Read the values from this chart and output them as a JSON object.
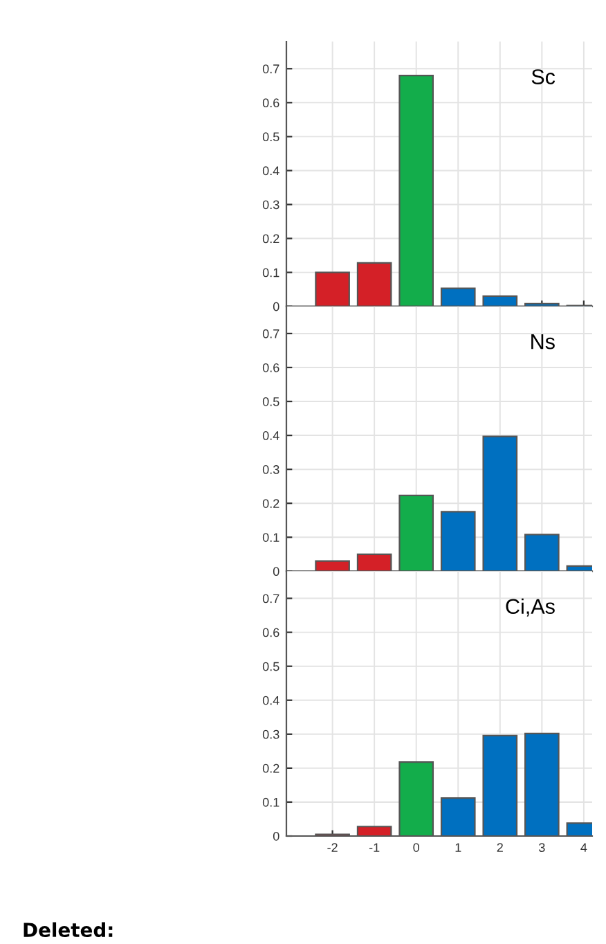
{
  "chart_data": [
    {
      "type": "bar",
      "title": "Sc",
      "x": [
        -2,
        -1,
        0,
        1,
        2,
        3,
        4
      ],
      "values": [
        0.1,
        0.128,
        0.68,
        0.053,
        0.03,
        0.008,
        0.002
      ],
      "colors": [
        "#d42027",
        "#d42027",
        "#13ad4b",
        "#0070c0",
        "#0070c0",
        "#0070c0",
        "#0070c0"
      ],
      "xlim": [
        -3.1,
        4.2
      ],
      "ylim": [
        0,
        0.78
      ],
      "xticks": [
        -2,
        -1,
        0,
        1,
        2,
        3,
        4
      ],
      "yticks": [
        0,
        0.1,
        0.2,
        0.3,
        0.4,
        0.5,
        0.6,
        0.7
      ],
      "grid": true,
      "tick_labels": "y"
    },
    {
      "type": "bar",
      "title": "Ns",
      "x": [
        -2,
        -1,
        0,
        1,
        2,
        3,
        4
      ],
      "values": [
        0.03,
        0.05,
        0.223,
        0.175,
        0.397,
        0.108,
        0.015
      ],
      "colors": [
        "#d42027",
        "#d42027",
        "#13ad4b",
        "#0070c0",
        "#0070c0",
        "#0070c0",
        "#0070c0"
      ],
      "xlim": [
        -3.1,
        4.2
      ],
      "ylim": [
        0,
        0.78
      ],
      "xticks": [
        -2,
        -1,
        0,
        1,
        2,
        3,
        4
      ],
      "yticks": [
        0,
        0.1,
        0.2,
        0.3,
        0.4,
        0.5,
        0.6,
        0.7
      ],
      "grid": true,
      "tick_labels": "y"
    },
    {
      "type": "bar",
      "title": "Ci,As",
      "x": [
        -2,
        -1,
        0,
        1,
        2,
        3,
        4
      ],
      "values": [
        0.005,
        0.028,
        0.218,
        0.112,
        0.296,
        0.302,
        0.038
      ],
      "colors": [
        "#d42027",
        "#d42027",
        "#13ad4b",
        "#0070c0",
        "#0070c0",
        "#0070c0",
        "#0070c0"
      ],
      "xlim": [
        -3.1,
        4.2
      ],
      "ylim": [
        0,
        0.78
      ],
      "xticks": [
        -2,
        -1,
        0,
        1,
        2,
        3,
        4
      ],
      "yticks": [
        0,
        0.1,
        0.2,
        0.3,
        0.4,
        0.5,
        0.6,
        0.7
      ],
      "grid": true,
      "annotations": [
        "Deleted:"
      ]
    }
  ]
}
